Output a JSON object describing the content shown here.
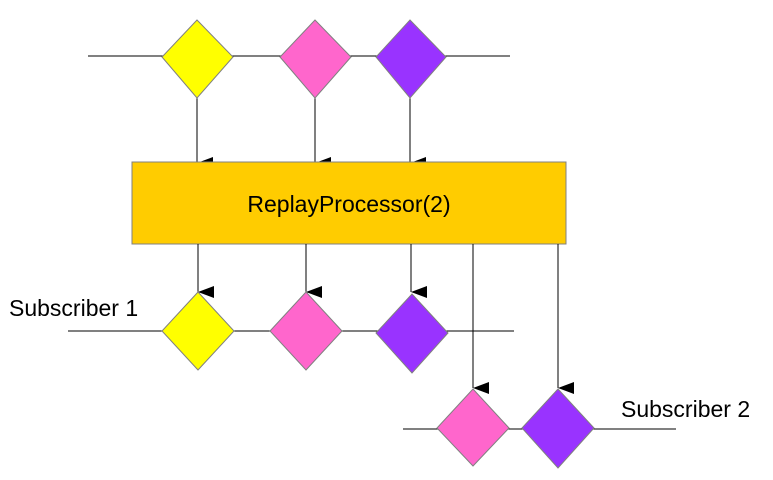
{
  "diagram": {
    "processor": {
      "label": "ReplayProcessor(2)",
      "fill": "#FFCC00"
    },
    "subscriber1": {
      "label": "Subscriber 1"
    },
    "subscriber2": {
      "label": "Subscriber 2"
    },
    "colors": {
      "yellow": "#FFFF00",
      "pink": "#FF66CC",
      "purple": "#9933FF",
      "line": "#000000"
    },
    "source_items": [
      "yellow",
      "pink",
      "purple"
    ],
    "subscriber1_items": [
      "yellow",
      "pink",
      "purple"
    ],
    "subscriber2_items": [
      "pink",
      "purple"
    ]
  }
}
